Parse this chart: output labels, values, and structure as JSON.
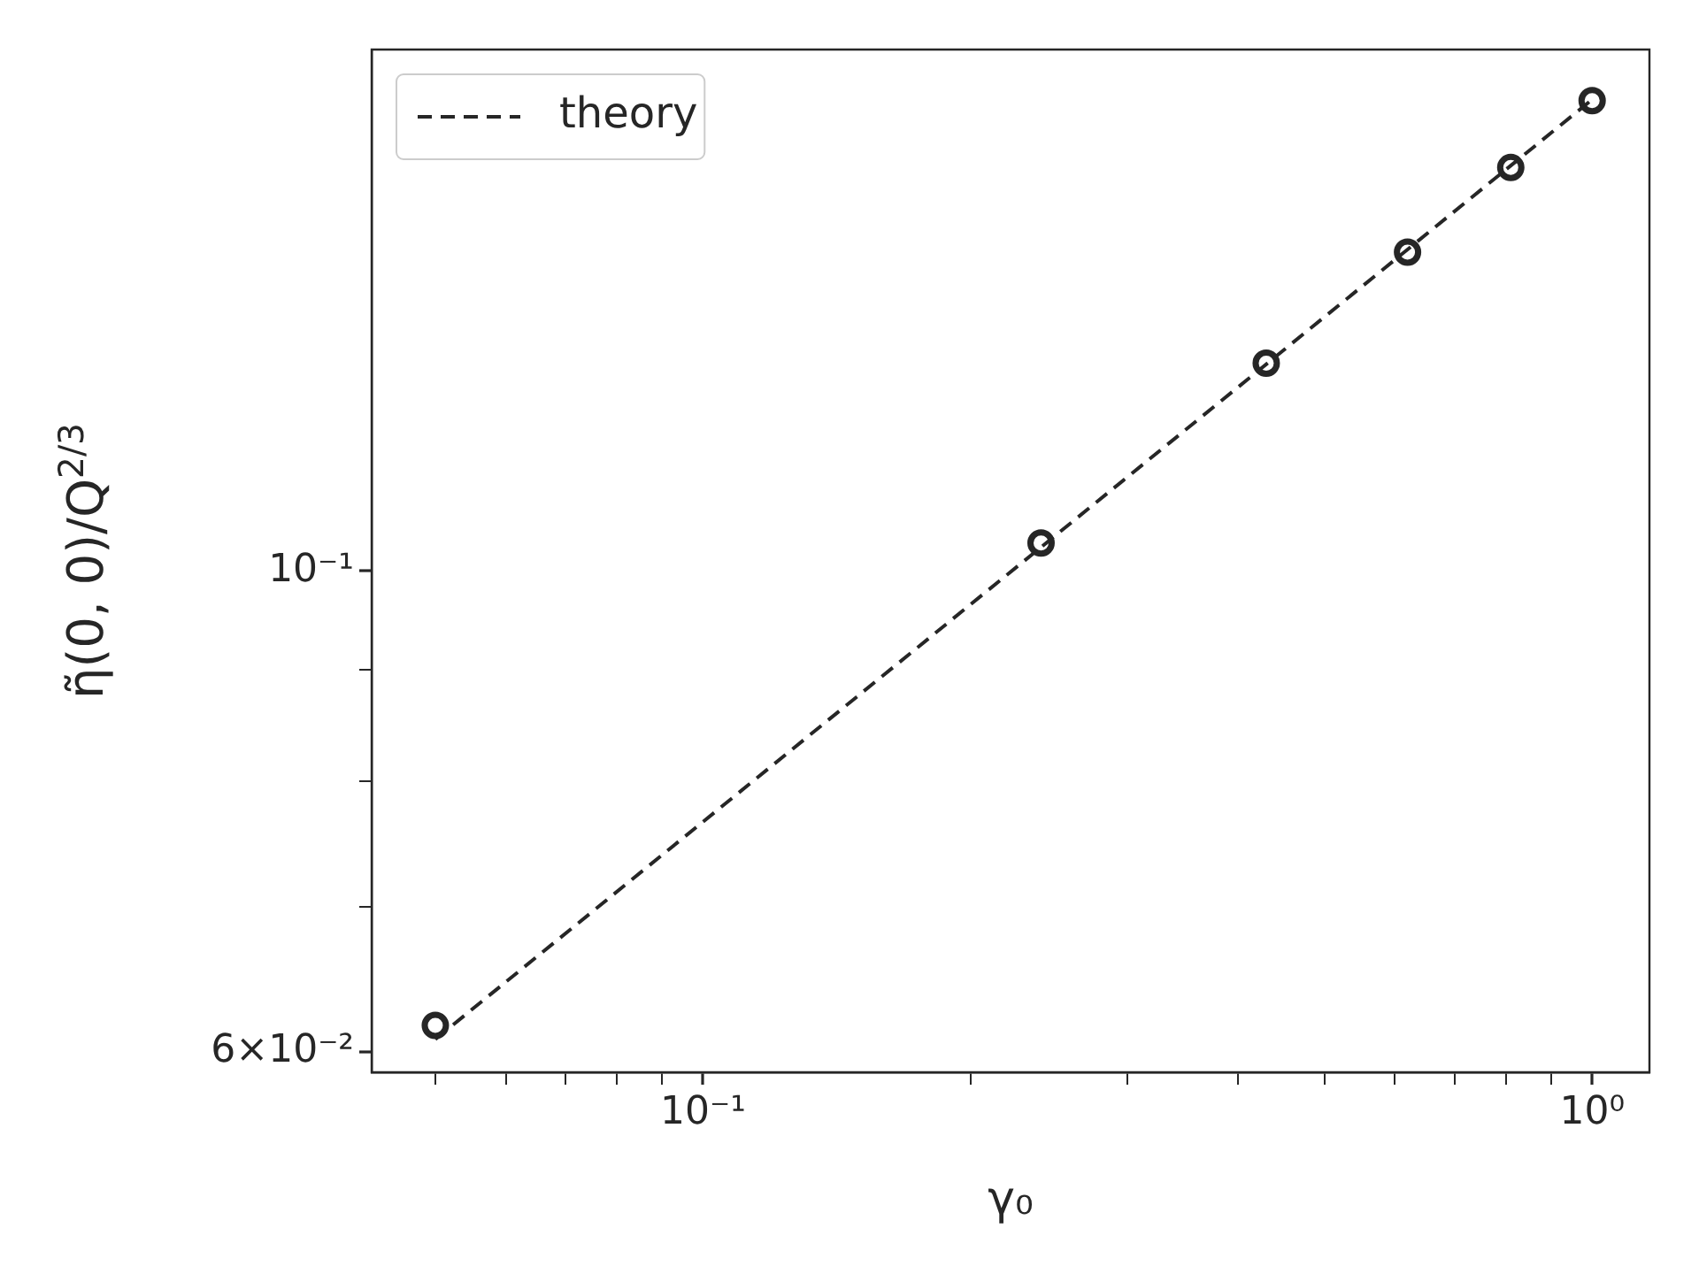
{
  "chart_data": {
    "type": "scatter",
    "xlabel": "γ₀",
    "ylabel": "η̃(0, 0)/Q$^{2/3}$",
    "log": "xy",
    "grid": false,
    "legend": "top left",
    "xlim": [
      0.0424,
      1.16
    ],
    "ylim": [
      0.0587,
      0.174
    ],
    "xticks": [
      {
        "value": 0.05,
        "label": null
      },
      {
        "value": 0.06,
        "label": null
      },
      {
        "value": 0.07,
        "label": null
      },
      {
        "value": 0.08,
        "label": null
      },
      {
        "value": 0.09,
        "label": null
      },
      {
        "value": 0.1,
        "label": "10⁻¹"
      },
      {
        "value": 0.2,
        "label": null
      },
      {
        "value": 0.3,
        "label": null
      },
      {
        "value": 0.4,
        "label": null
      },
      {
        "value": 0.5,
        "label": null
      },
      {
        "value": 0.6,
        "label": null
      },
      {
        "value": 0.7,
        "label": null
      },
      {
        "value": 0.8,
        "label": null
      },
      {
        "value": 0.9,
        "label": null
      },
      {
        "value": 1,
        "label": "10⁰"
      }
    ],
    "yticks": [
      {
        "value": 0.06,
        "label": "6×10⁻²"
      },
      {
        "value": 0.07,
        "label": null
      },
      {
        "value": 0.08,
        "label": null
      },
      {
        "value": 0.09,
        "label": null
      },
      {
        "value": 0.1,
        "label": "10⁻¹"
      }
    ],
    "series": [
      {
        "x": [
          0.05,
          0.24,
          0.43,
          0.62,
          0.81,
          1.0
        ],
        "values": [
          0.0617,
          0.103,
          0.1247,
          0.1403,
          0.1535,
          0.1648
        ],
        "color": "#262626",
        "marker": "circle"
      },
      {
        "name": "theory",
        "type": "line",
        "x": [
          0.05,
          1.0
        ],
        "values": [
          0.0608,
          0.165
        ],
        "color": "#262626",
        "line_style": "dashed",
        "marker": "none"
      }
    ]
  }
}
